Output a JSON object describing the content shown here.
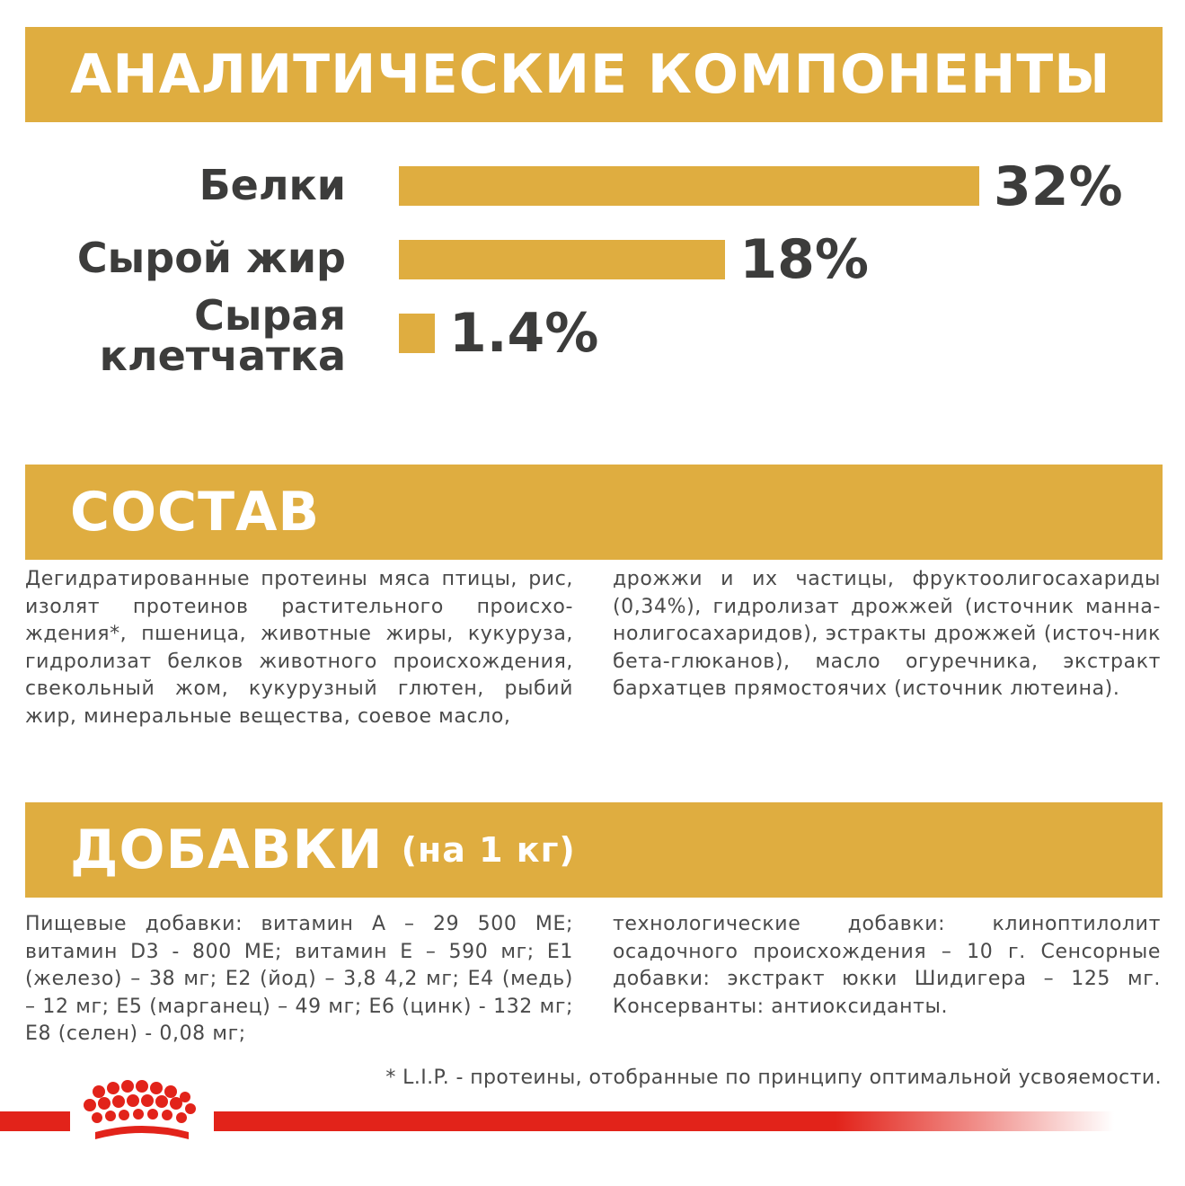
{
  "colors": {
    "accent": "#dfad40",
    "text": "#3c3c3b",
    "brand_red": "#e2231a"
  },
  "analytic": {
    "title": "АНАЛИТИЧЕСКИЕ КОМПОНЕНТЫ",
    "items": [
      {
        "label": "Белки",
        "value": "32%",
        "percent": 32
      },
      {
        "label": "Сырой жир",
        "value": "18%",
        "percent": 18
      },
      {
        "label_line1": "Сырая",
        "label_line2": "клетчатка",
        "value": "1.4%",
        "percent": 1.4
      }
    ]
  },
  "composition": {
    "title": "СОСТАВ",
    "text_left": "Дегидратированные протеины мяса птицы, рис, изолят протеинов растительного происхо-ждения*, пшеница, животные жиры, кукуруза, гидролизат белков животного происхождения, свекольный жом, кукурузный глютен, рыбий жир, минеральные вещества, соевое масло,",
    "text_right": "дрожжи и их частицы, фруктоолигосахариды (0,34%), гидролизат дрожжей (источник манна-нолигосахаридов), эстракты дрожжей (источ-ник бета-глюканов), масло огуречника, экстракт бархатцев прямостоячих (источник лютеина)."
  },
  "additives": {
    "title": "ДОБАВКИ",
    "subtitle": "(на 1 кг)",
    "text_left": "Пищевые добавки: витамин А – 29 500 МЕ; витамин D3 - 800 МЕ; витамин Е – 590 мг; Е1 (железо) – 38 мг; Е2 (йод) – 3,8 4,2 мг; Е4 (медь) – 12 мг; Е5 (марганец) – 49 мг; Е6 (цинк) - 132 мг; Е8 (селен) - 0,08 мг;",
    "text_right": "технологические добавки: клиноптилолит осадочного происхождения – 10 г. Сенсорные добавки: экстракт юкки Шидигера – 125 мг. Консерванты: антиоксиданты."
  },
  "footnote": "* L.I.P. - протеины, отобранные по принципу оптимальной усвояемости.",
  "logo": {
    "icon": "crown-icon"
  }
}
